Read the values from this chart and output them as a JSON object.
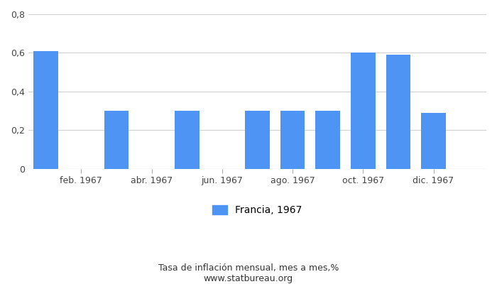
{
  "bar_positions": [
    0,
    2,
    4,
    6,
    7,
    8,
    9,
    10,
    11
  ],
  "bar_values": [
    0.61,
    0.3,
    0.3,
    0.3,
    0.3,
    0.3,
    0.6,
    0.59,
    0.29
  ],
  "bar_color": "#4d94f5",
  "xlim": [
    -0.5,
    12.5
  ],
  "xtick_positions": [
    1,
    3,
    5,
    7,
    9,
    11
  ],
  "xtick_labels": [
    "feb. 1967",
    "abr. 1967",
    "jun. 1967",
    "ago. 1967",
    "oct. 1967",
    "dic. 1967"
  ],
  "ylim": [
    0,
    0.8
  ],
  "yticks": [
    0,
    0.2,
    0.4,
    0.6,
    0.8
  ],
  "ytick_labels": [
    "0",
    "0,2",
    "0,4",
    "0,6",
    "0,8"
  ],
  "legend_label": "Francia, 1967",
  "xlabel_bottom1": "Tasa de inflación mensual, mes a mes,%",
  "xlabel_bottom2": "www.statbureau.org",
  "background_color": "#ffffff",
  "grid_color": "#d0d0d0",
  "bar_width": 0.7
}
